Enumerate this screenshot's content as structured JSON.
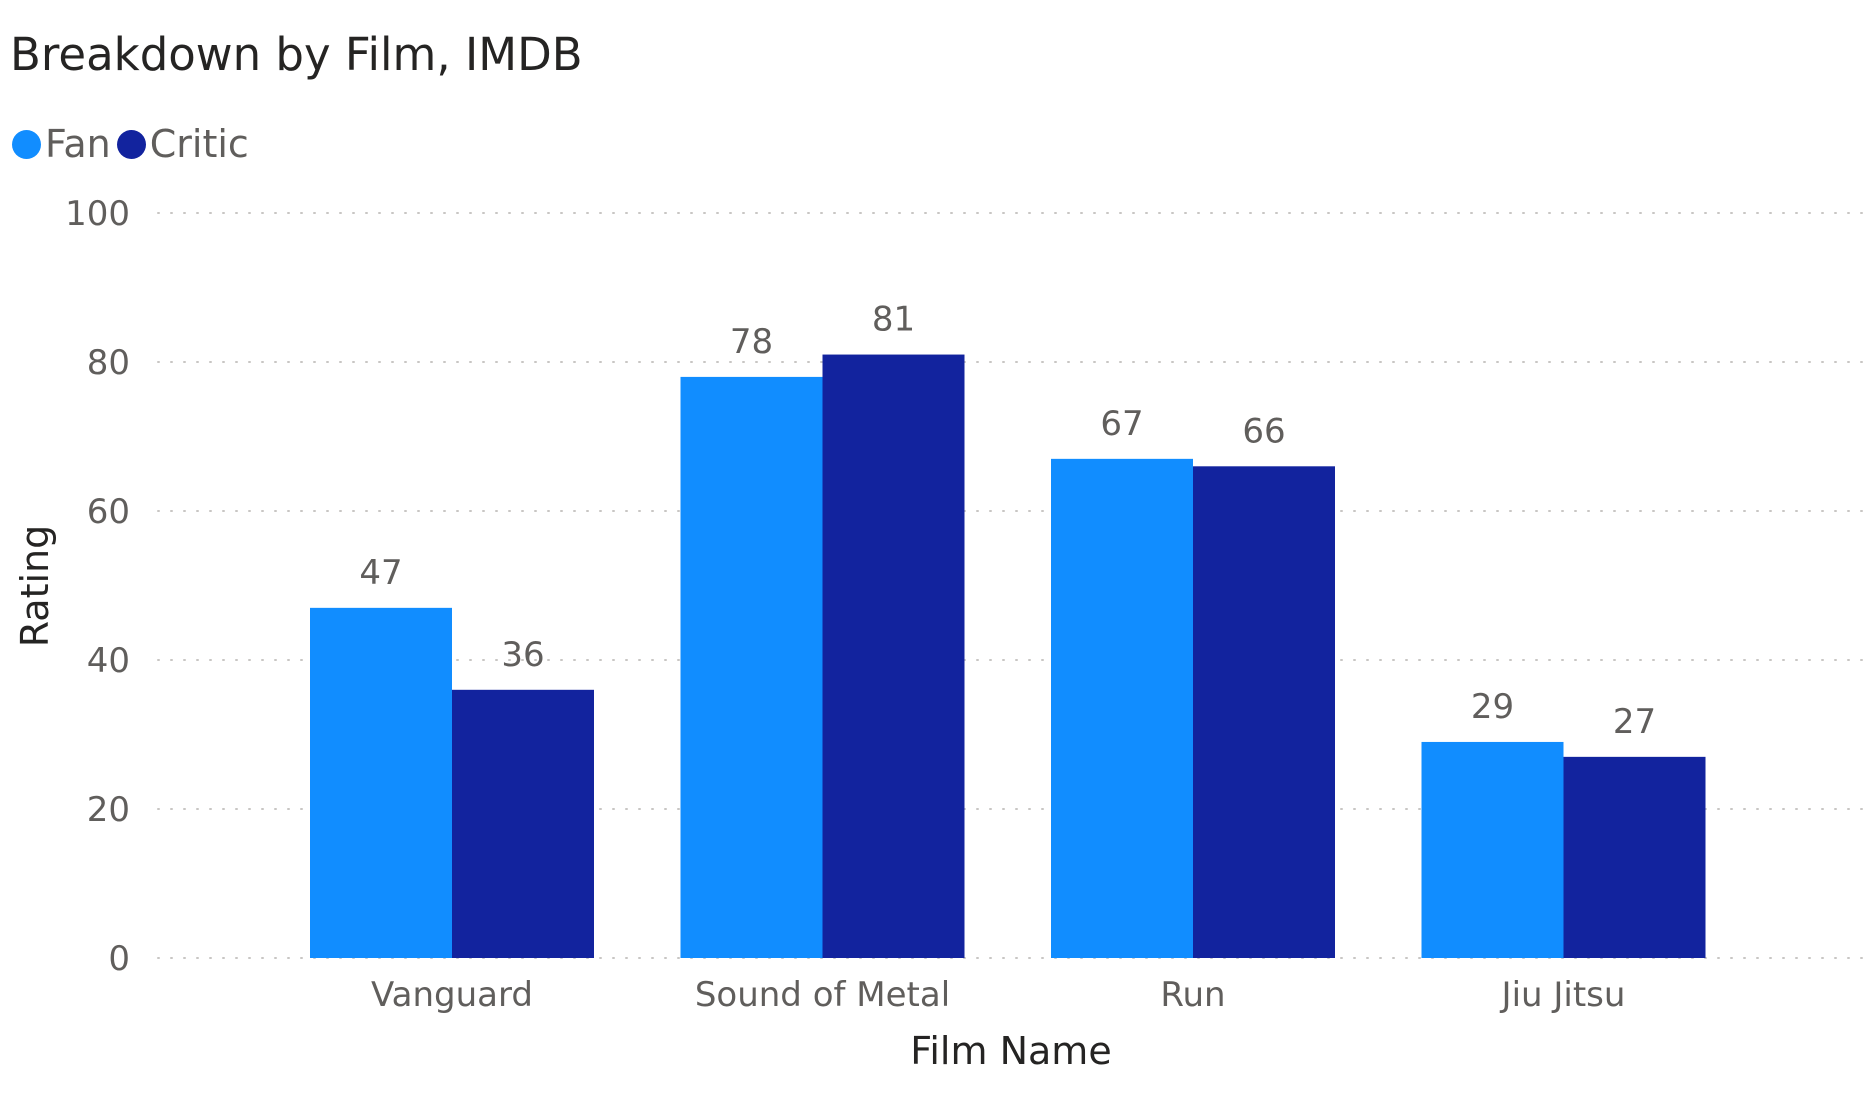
{
  "chart_data": {
    "type": "bar",
    "title": "Breakdown by Film, IMDB",
    "xlabel": "Film Name",
    "ylabel": "Rating",
    "ylim": [
      0,
      100
    ],
    "yticks": [
      0,
      20,
      40,
      60,
      80,
      100
    ],
    "yticks_text": [
      "0",
      "20",
      "40",
      "60",
      "80",
      "100"
    ],
    "grid": true,
    "legend_position": "top-left",
    "categories": [
      "Vanguard",
      "Sound of Metal",
      "Run",
      "Jiu Jitsu"
    ],
    "series": [
      {
        "name": "Fan",
        "color": "#118dff",
        "values": [
          47,
          78,
          67,
          29
        ],
        "labels": [
          "47",
          "78",
          "67",
          "29"
        ]
      },
      {
        "name": "Critic",
        "color": "#12239e",
        "values": [
          36,
          81,
          66,
          27
        ],
        "labels": [
          "36",
          "81",
          "66",
          "27"
        ]
      }
    ]
  }
}
